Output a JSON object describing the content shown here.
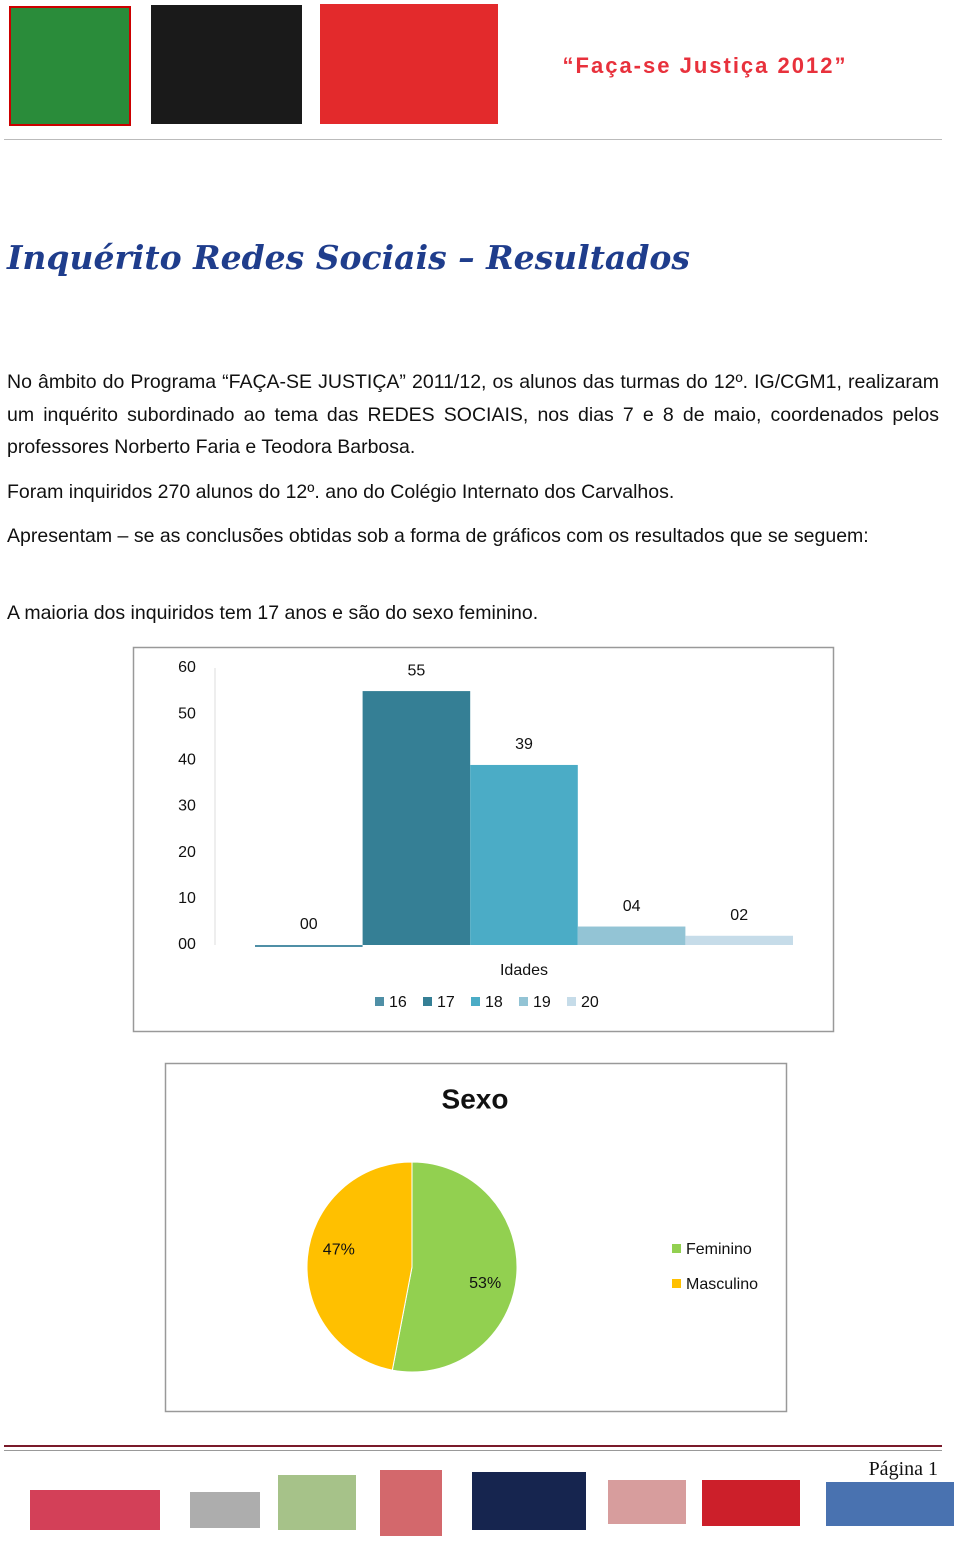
{
  "header": {
    "title": "“Faça-se Justiça 2012”"
  },
  "heading": "Inquérito Redes Sociais – Resultados",
  "paragraphs": [
    "No âmbito do Programa “FAÇA-SE JUSTIÇA” 2011/12, os alunos das turmas do 12º. IG/CGM1, realizaram um inquérito subordinado ao tema das REDES SOCIAIS, nos dias 7 e 8 de maio, coordenados pelos professores Norberto Faria e Teodora Barbosa.",
    "Foram inquiridos 270 alunos do 12º. ano  do Colégio Internato dos Carvalhos.",
    "Apresentam – se as conclusões obtidas sob a forma de gráficos com os resultados que se seguem:",
    "A maioria dos inquiridos tem 17 anos e são do sexo feminino."
  ],
  "chart_data": [
    {
      "type": "bar",
      "x_label": "Idades",
      "series": [
        {
          "name": "16",
          "color": "#4f8fa6",
          "values": [
            0
          ],
          "value_labels": [
            "00"
          ]
        },
        {
          "name": "17",
          "color": "#357f95",
          "values": [
            55
          ],
          "value_labels": [
            "55"
          ]
        },
        {
          "name": "18",
          "color": "#4bacc6",
          "values": [
            39
          ],
          "value_labels": [
            "39"
          ]
        },
        {
          "name": "19",
          "color": "#93c4d5",
          "values": [
            4
          ],
          "value_labels": [
            "04"
          ]
        },
        {
          "name": "20",
          "color": "#c6dce9",
          "values": [
            2
          ],
          "value_labels": [
            "02"
          ]
        }
      ],
      "ylim": [
        0,
        60
      ],
      "yticks": [
        {
          "value": 0,
          "label": "00"
        },
        10,
        20,
        30,
        40,
        50,
        60
      ],
      "legend": "bottom"
    },
    {
      "type": "pie",
      "title": "Sexo",
      "categories": [
        "Feminino",
        "Masculino"
      ],
      "values": [
        53,
        47
      ],
      "value_labels": [
        "53%",
        "47%"
      ],
      "colors": [
        "#92d050",
        "#ffc000"
      ],
      "legend": "right"
    }
  ],
  "footer": {
    "page": "Página 1"
  }
}
